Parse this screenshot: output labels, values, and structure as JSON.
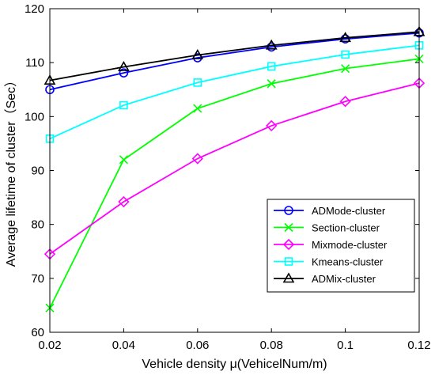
{
  "chart_data": {
    "type": "line",
    "xlabel": "Vehicle density μ(VehicelNum/m)",
    "ylabel": "Average lifetime of cluster（Sec）",
    "x": [
      0.02,
      0.04,
      0.06,
      0.08,
      0.1,
      0.12
    ],
    "x_tick_labels": [
      "0.02",
      "0.04",
      "0.06",
      "0.08",
      "0.1",
      "0.12"
    ],
    "xlim": [
      0.02,
      0.12
    ],
    "ylim": [
      60,
      120
    ],
    "y_ticks": [
      60,
      70,
      80,
      90,
      100,
      110,
      120
    ],
    "grid": false,
    "legend_position": "bottom-right",
    "series": [
      {
        "name": "ADMode-cluster",
        "color": "#0000ff",
        "marker": "circle",
        "values": [
          105.0,
          108.1,
          110.9,
          112.9,
          114.4,
          115.5
        ]
      },
      {
        "name": "Section-cluster",
        "color": "#00ff00",
        "marker": "x",
        "values": [
          64.5,
          92.0,
          101.5,
          106.1,
          108.9,
          110.7
        ]
      },
      {
        "name": "Mixmode-cluster",
        "color": "#ff00ff",
        "marker": "diamond",
        "values": [
          74.5,
          84.2,
          92.2,
          98.3,
          102.8,
          106.2
        ]
      },
      {
        "name": "Kmeans-cluster",
        "color": "#00ffff",
        "marker": "square",
        "values": [
          95.9,
          102.1,
          106.3,
          109.3,
          111.5,
          113.2
        ]
      },
      {
        "name": "ADMix-cluster",
        "color": "#000000",
        "marker": "triangle",
        "values": [
          106.7,
          109.2,
          111.4,
          113.2,
          114.6,
          115.7
        ]
      }
    ]
  }
}
